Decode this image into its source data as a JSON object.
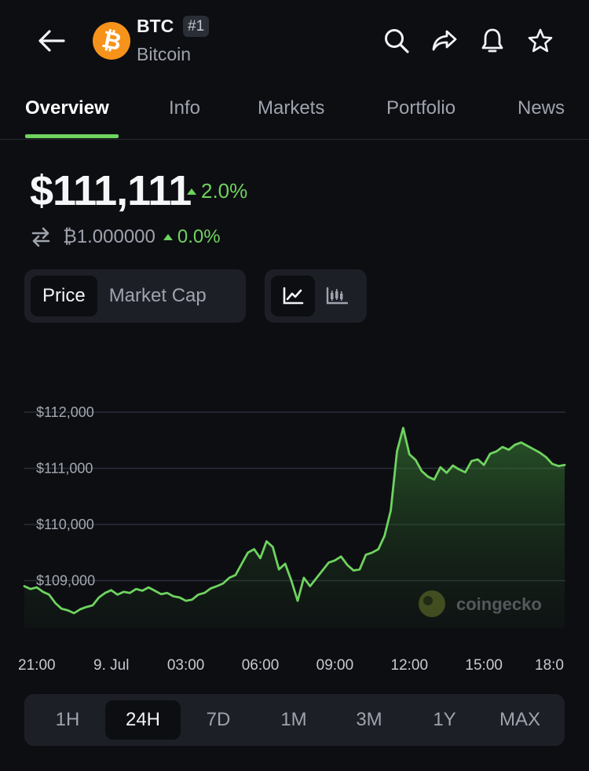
{
  "header": {
    "symbol": "BTC",
    "rank": "#1",
    "name": "Bitcoin",
    "logo_glyph": "₿",
    "icons": [
      "back-arrow-icon",
      "search-icon",
      "share-icon",
      "bell-icon",
      "star-icon"
    ]
  },
  "tabs": [
    {
      "label": "Overview",
      "active": true
    },
    {
      "label": "Info",
      "active": false
    },
    {
      "label": "Markets",
      "active": false
    },
    {
      "label": "Portfolio",
      "active": false
    },
    {
      "label": "News",
      "active": false
    }
  ],
  "price": {
    "usd": "$111,111",
    "usd_change": "2.0%",
    "btc": "₿1.000000",
    "btc_change": "0.0%"
  },
  "metric_toggle": [
    {
      "label": "Price",
      "active": true
    },
    {
      "label": "Market Cap",
      "active": false
    }
  ],
  "chart_type_toggle": [
    {
      "icon": "line-chart-icon",
      "active": true
    },
    {
      "icon": "candlestick-icon",
      "active": false
    }
  ],
  "watermark": "coingecko",
  "colors": {
    "accent": "#6fd35f",
    "background": "#0d0e12",
    "panel": "#1c1f26",
    "muted_text": "#9ea3ad",
    "bitcoin_orange": "#f7931a"
  },
  "chart_data": {
    "type": "area",
    "x_ticks": [
      "21:00",
      "9. Jul",
      "03:00",
      "06:00",
      "09:00",
      "12:00",
      "15:00",
      "18:0"
    ],
    "y_ticks": [
      "$112,000",
      "$111,000",
      "$110,000",
      "$109,000"
    ],
    "ylim": [
      108500,
      112000
    ],
    "grid": true,
    "series": [
      {
        "x": [
          -3.5,
          -3.25,
          -3,
          -2.75,
          -2.5,
          -2.25,
          -2,
          -1.75,
          -1.5,
          -1.25,
          -1,
          -0.75,
          -0.5,
          -0.25,
          0,
          0.25,
          0.5,
          0.75,
          1,
          1.25,
          1.5,
          1.75,
          2,
          2.25,
          2.5,
          2.75,
          3,
          3.25,
          3.5,
          3.75,
          4,
          4.25,
          4.5,
          4.75,
          5,
          5.25,
          5.5,
          5.75,
          6,
          6.25,
          6.5,
          6.75,
          7,
          7.25,
          7.5,
          7.75,
          8,
          8.25,
          8.5,
          8.75,
          9,
          9.25,
          9.5,
          9.75,
          10,
          10.25,
          10.5,
          10.75,
          11,
          11.25,
          11.5,
          11.75,
          12,
          12.25,
          12.5,
          12.75,
          13,
          13.25,
          13.5,
          13.75,
          14,
          14.25,
          14.5,
          14.75,
          15,
          15.25,
          15.5,
          15.75,
          16,
          16.25,
          16.5,
          16.75,
          17,
          17.25,
          17.5,
          17.75,
          18,
          18.25
        ],
        "values": [
          108900,
          108850,
          108880,
          108800,
          108750,
          108600,
          108500,
          108470,
          108420,
          108490,
          108530,
          108560,
          108700,
          108780,
          108830,
          108750,
          108800,
          108780,
          108850,
          108820,
          108880,
          108820,
          108760,
          108780,
          108720,
          108700,
          108640,
          108660,
          108750,
          108780,
          108860,
          108900,
          108950,
          109050,
          109100,
          109300,
          109500,
          109560,
          109400,
          109700,
          109600,
          109200,
          109300,
          109000,
          108640,
          109050,
          108900,
          109040,
          109180,
          109320,
          109360,
          109430,
          109280,
          109180,
          109200,
          109460,
          109500,
          109560,
          109800,
          110250,
          111300,
          111720,
          111250,
          111150,
          110950,
          110850,
          110800,
          111020,
          110920,
          111050,
          110980,
          110930,
          111130,
          111160,
          111060,
          111260,
          111300,
          111380,
          111330,
          111420,
          111460,
          111400,
          111340,
          111280,
          111200,
          111080,
          111040,
          111060
        ]
      }
    ]
  }
}
